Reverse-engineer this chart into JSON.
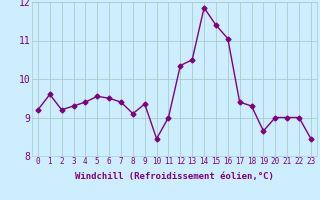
{
  "x": [
    0,
    1,
    2,
    3,
    4,
    5,
    6,
    7,
    8,
    9,
    10,
    11,
    12,
    13,
    14,
    15,
    16,
    17,
    18,
    19,
    20,
    21,
    22,
    23
  ],
  "y": [
    9.2,
    9.6,
    9.2,
    9.3,
    9.4,
    9.55,
    9.5,
    9.4,
    9.1,
    9.35,
    8.45,
    9.0,
    10.35,
    10.5,
    11.85,
    11.4,
    11.05,
    9.4,
    9.3,
    8.65,
    9.0,
    9.0,
    9.0,
    8.45
  ],
  "line_color": "#800080",
  "marker": "D",
  "markersize": 2.5,
  "linewidth": 1.0,
  "bg_color": "#cceeff",
  "grid_color": "#aacccc",
  "xlabel": "Windchill (Refroidissement éolien,°C)",
  "ylim": [
    8,
    12
  ],
  "xlim_min": -0.5,
  "xlim_max": 23.5,
  "yticks": [
    8,
    9,
    10,
    11,
    12
  ],
  "xticks": [
    0,
    1,
    2,
    3,
    4,
    5,
    6,
    7,
    8,
    9,
    10,
    11,
    12,
    13,
    14,
    15,
    16,
    17,
    18,
    19,
    20,
    21,
    22,
    23
  ],
  "tick_color": "#800080",
  "xlabel_fontsize": 6.5,
  "ytick_fontsize": 7,
  "xtick_fontsize": 5.5
}
